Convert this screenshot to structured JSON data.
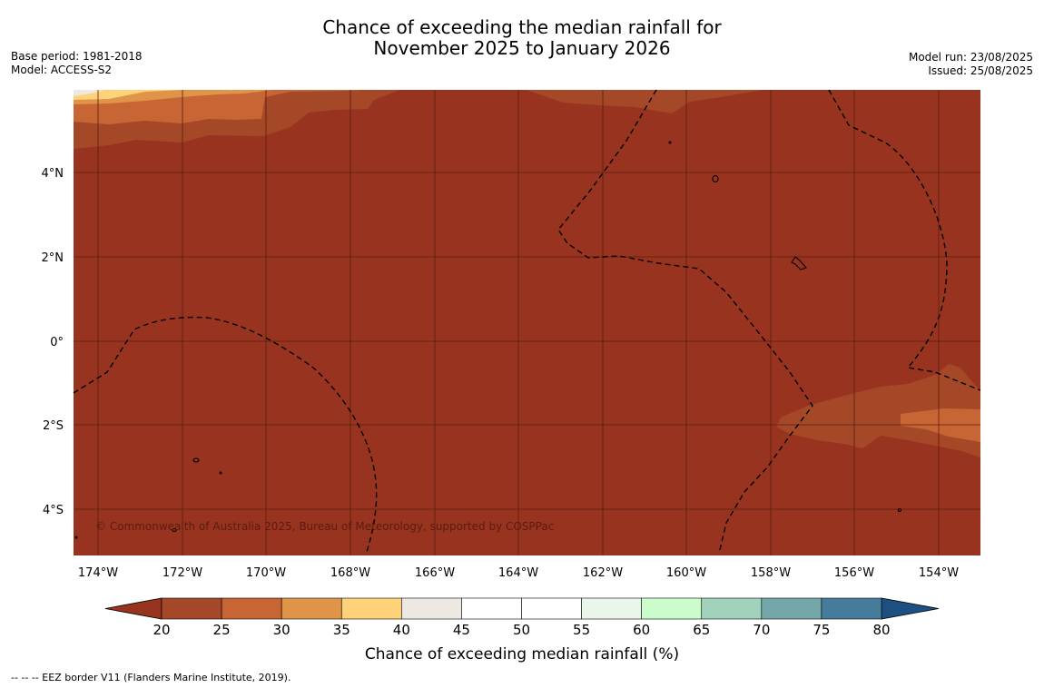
{
  "title": {
    "line1": "Chance of exceeding the median rainfall for",
    "line2": "November 2025 to January 2026"
  },
  "meta_left": {
    "base_period": "Base period: 1981-2018",
    "model": "Model: ACCESS-S2"
  },
  "meta_right": {
    "model_run": "Model run: 23/08/2025",
    "issued": "Issued: 25/08/2025"
  },
  "map": {
    "lat_labels": [
      "4°N",
      "2°N",
      "0°",
      "2°S",
      "4°S"
    ],
    "lon_labels": [
      "174°W",
      "172°W",
      "170°W",
      "168°W",
      "166°W",
      "164°W",
      "162°W",
      "160°W",
      "158°W",
      "156°W",
      "154°W"
    ],
    "background_color": "#983320",
    "copyright": "© Commonwealth of Australia 2025, Bureau of Meteorology, supported by COSPPac"
  },
  "colorbar": {
    "ticks": [
      "20",
      "25",
      "30",
      "35",
      "40",
      "45",
      "50",
      "55",
      "60",
      "65",
      "70",
      "75",
      "80"
    ],
    "colors": [
      "#a54828",
      "#c86535",
      "#e09448",
      "#fed279",
      "#ede9e2",
      "#ffffff",
      "#ffffff",
      "#eaf6e9",
      "#cbfdcc",
      "#a0d2bc",
      "#73a7aa",
      "#457c9c"
    ],
    "under_color": "#983320",
    "over_color": "#1d4f80",
    "title": "Chance of exceeding median rainfall (%)"
  },
  "footer": "--  --  -- EEZ border V11 (Flanders Marine Institute, 2019)."
}
